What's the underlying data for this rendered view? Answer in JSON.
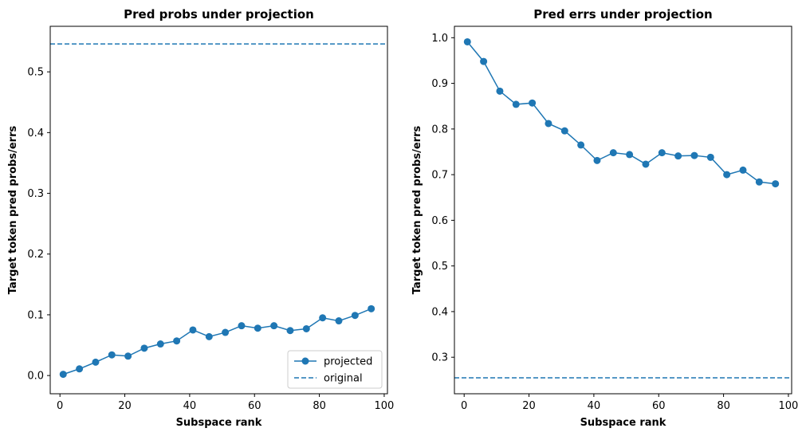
{
  "chart_data": [
    {
      "type": "line",
      "title": "Pred probs under projection",
      "xlabel": "Subspace rank",
      "ylabel": "Target token pred probs/errs",
      "xlim": [
        -3,
        101
      ],
      "ylim": [
        -0.03,
        0.575
      ],
      "xticks": [
        0,
        20,
        40,
        60,
        80,
        100
      ],
      "yticks": [
        0.0,
        0.1,
        0.2,
        0.3,
        0.4,
        0.5
      ],
      "xtick_labels": [
        "0",
        "20",
        "40",
        "60",
        "80",
        "100"
      ],
      "ytick_labels": [
        "0.0",
        "0.1",
        "0.2",
        "0.3",
        "0.4",
        "0.5"
      ],
      "x": [
        1,
        6,
        11,
        16,
        21,
        26,
        31,
        36,
        41,
        46,
        51,
        56,
        61,
        66,
        71,
        76,
        81,
        86,
        91,
        96
      ],
      "series": [
        {
          "name": "projected",
          "style": "line-marker",
          "values": [
            0.002,
            0.011,
            0.022,
            0.034,
            0.032,
            0.045,
            0.052,
            0.057,
            0.075,
            0.064,
            0.071,
            0.082,
            0.078,
            0.082,
            0.074,
            0.077,
            0.095,
            0.09,
            0.099,
            0.11
          ]
        },
        {
          "name": "original",
          "style": "hline-dashed",
          "value": 0.546
        }
      ],
      "legend": {
        "position": "lower-right",
        "entries": [
          "projected",
          "original"
        ]
      },
      "color": "#1f77b4"
    },
    {
      "type": "line",
      "title": "Pred errs under projection",
      "xlabel": "Subspace rank",
      "ylabel": "Target token pred probs/errs",
      "xlim": [
        -3,
        101
      ],
      "ylim": [
        0.22,
        1.025
      ],
      "xticks": [
        0,
        20,
        40,
        60,
        80,
        100
      ],
      "yticks": [
        0.3,
        0.4,
        0.5,
        0.6,
        0.7,
        0.8,
        0.9,
        1.0
      ],
      "xtick_labels": [
        "0",
        "20",
        "40",
        "60",
        "80",
        "100"
      ],
      "ytick_labels": [
        "0.3",
        "0.4",
        "0.5",
        "0.6",
        "0.7",
        "0.8",
        "0.9",
        "1.0"
      ],
      "x": [
        1,
        6,
        11,
        16,
        21,
        26,
        31,
        36,
        41,
        46,
        51,
        56,
        61,
        66,
        71,
        76,
        81,
        86,
        91,
        96
      ],
      "series": [
        {
          "name": "projected",
          "style": "line-marker",
          "values": [
            0.991,
            0.948,
            0.883,
            0.854,
            0.857,
            0.812,
            0.796,
            0.765,
            0.731,
            0.748,
            0.744,
            0.723,
            0.748,
            0.741,
            0.742,
            0.738,
            0.7,
            0.71,
            0.684,
            0.68
          ]
        },
        {
          "name": "original",
          "style": "hline-dashed",
          "value": 0.255
        }
      ],
      "color": "#1f77b4"
    }
  ]
}
